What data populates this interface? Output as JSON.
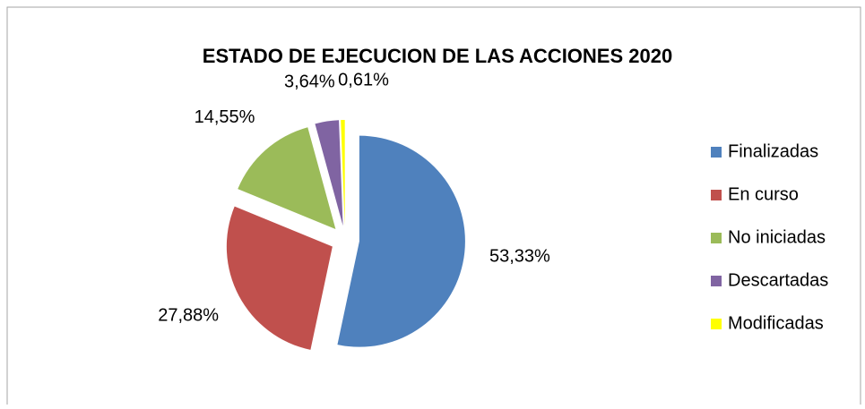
{
  "chart_data": {
    "type": "pie",
    "title": "ESTADO DE EJECUCION DE LAS ACCIONES  2020",
    "categories": [
      "Finalizadas",
      "En curso",
      "No iniciadas",
      "Descartadas",
      "Modificadas"
    ],
    "values": [
      53.33,
      27.88,
      14.55,
      3.64,
      0.61
    ],
    "value_labels": [
      "53,33%",
      "27,88%",
      "14,55%",
      "3,64%",
      "0,61%"
    ],
    "colors": [
      "#4f81bd",
      "#c0504d",
      "#9bbb59",
      "#8064a2",
      "#ffff00"
    ],
    "legend": "right"
  }
}
